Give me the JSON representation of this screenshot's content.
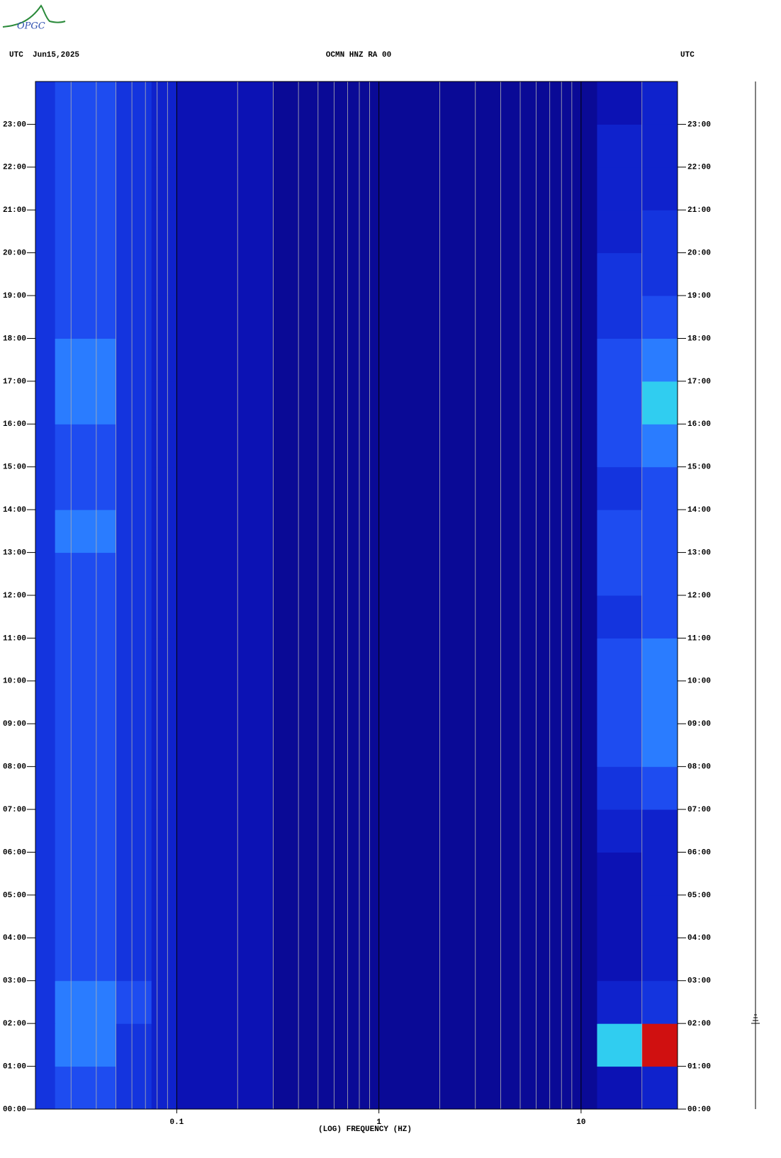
{
  "logo": "OPGC",
  "chart_data": {
    "type": "spectrogram",
    "title": "OCMN HNZ RA 00",
    "left_header": "UTC  Jun15,2025",
    "right_header": "UTC",
    "xlabel": "(LOG) FREQUENCY (HZ)",
    "xscale": "log",
    "xlim": [
      0.02,
      30
    ],
    "xticks": [
      0.1,
      1,
      10
    ],
    "xminor": [
      0.03,
      0.04,
      0.05,
      0.06,
      0.07,
      0.08,
      0.09,
      0.2,
      0.3,
      0.4,
      0.5,
      0.6,
      0.7,
      0.8,
      0.9,
      2,
      3,
      4,
      5,
      6,
      7,
      8,
      9,
      20,
      30
    ],
    "ylim": [
      0,
      24
    ],
    "yticks": [
      {
        "value": 0,
        "label": "00:00"
      },
      {
        "value": 1,
        "label": "01:00"
      },
      {
        "value": 2,
        "label": "02:00"
      },
      {
        "value": 3,
        "label": "03:00"
      },
      {
        "value": 4,
        "label": "04:00"
      },
      {
        "value": 5,
        "label": "05:00"
      },
      {
        "value": 6,
        "label": "06:00"
      },
      {
        "value": 7,
        "label": "07:00"
      },
      {
        "value": 8,
        "label": "08:00"
      },
      {
        "value": 9,
        "label": "09:00"
      },
      {
        "value": 10,
        "label": "10:00"
      },
      {
        "value": 11,
        "label": "11:00"
      },
      {
        "value": 12,
        "label": "12:00"
      },
      {
        "value": 13,
        "label": "13:00"
      },
      {
        "value": 14,
        "label": "14:00"
      },
      {
        "value": 15,
        "label": "15:00"
      },
      {
        "value": 16,
        "label": "16:00"
      },
      {
        "value": 17,
        "label": "17:00"
      },
      {
        "value": 18,
        "label": "18:00"
      },
      {
        "value": 19,
        "label": "19:00"
      },
      {
        "value": 20,
        "label": "20:00"
      },
      {
        "value": 21,
        "label": "21:00"
      },
      {
        "value": 22,
        "label": "22:00"
      },
      {
        "value": 23,
        "label": "23:00"
      }
    ],
    "xbins": [
      0.02,
      0.025,
      0.05,
      0.075,
      0.1,
      0.3,
      1,
      12,
      20,
      30
    ],
    "ybins": [
      0,
      1,
      2,
      3,
      4,
      5,
      6,
      7,
      8,
      9,
      10,
      11,
      12,
      13,
      14,
      15,
      16,
      17,
      18,
      19,
      20,
      21,
      22,
      23,
      24
    ],
    "z": [
      [
        3,
        4,
        3,
        2,
        1,
        0,
        0,
        1,
        2
      ],
      [
        3,
        5,
        3,
        2,
        1,
        0,
        0,
        6,
        9
      ],
      [
        3,
        5,
        4,
        2,
        1,
        0,
        0,
        2,
        3
      ],
      [
        3,
        4,
        3,
        2,
        1,
        0,
        0,
        1,
        2
      ],
      [
        3,
        4,
        3,
        2,
        1,
        0,
        0,
        1,
        2
      ],
      [
        3,
        4,
        3,
        2,
        1,
        0,
        0,
        1,
        2
      ],
      [
        3,
        4,
        3,
        2,
        1,
        0,
        0,
        2,
        2
      ],
      [
        3,
        4,
        3,
        2,
        1,
        0,
        0,
        3,
        4
      ],
      [
        3,
        4,
        3,
        2,
        1,
        0,
        0,
        4,
        5
      ],
      [
        3,
        4,
        3,
        2,
        1,
        0,
        0,
        4,
        5
      ],
      [
        3,
        4,
        3,
        2,
        1,
        0,
        0,
        4,
        5
      ],
      [
        3,
        4,
        3,
        2,
        1,
        0,
        0,
        3,
        4
      ],
      [
        3,
        4,
        3,
        2,
        1,
        0,
        0,
        4,
        4
      ],
      [
        3,
        5,
        3,
        2,
        1,
        0,
        0,
        4,
        4
      ],
      [
        3,
        4,
        3,
        2,
        1,
        0,
        0,
        3,
        4
      ],
      [
        3,
        4,
        3,
        2,
        1,
        0,
        0,
        4,
        5
      ],
      [
        3,
        5,
        3,
        2,
        1,
        0,
        0,
        4,
        6
      ],
      [
        3,
        5,
        3,
        2,
        1,
        0,
        0,
        4,
        5
      ],
      [
        3,
        4,
        3,
        2,
        1,
        0,
        0,
        3,
        4
      ],
      [
        3,
        4,
        3,
        2,
        1,
        0,
        0,
        3,
        3
      ],
      [
        3,
        4,
        3,
        2,
        1,
        0,
        0,
        2,
        3
      ],
      [
        3,
        4,
        3,
        2,
        1,
        0,
        0,
        2,
        2
      ],
      [
        3,
        4,
        3,
        2,
        1,
        0,
        0,
        2,
        2
      ],
      [
        3,
        4,
        3,
        2,
        1,
        0,
        0,
        1,
        2
      ]
    ],
    "colormap": [
      "#0a0a96",
      "#0c12b4",
      "#0f22cc",
      "#1434de",
      "#1e4cf0",
      "#2a7cff",
      "#30cdf0",
      "#80ff80",
      "#ffe000",
      "#d01010"
    ],
    "grid": true,
    "grid_color": "#b0b0b0",
    "major_grid_color": "#000000"
  }
}
